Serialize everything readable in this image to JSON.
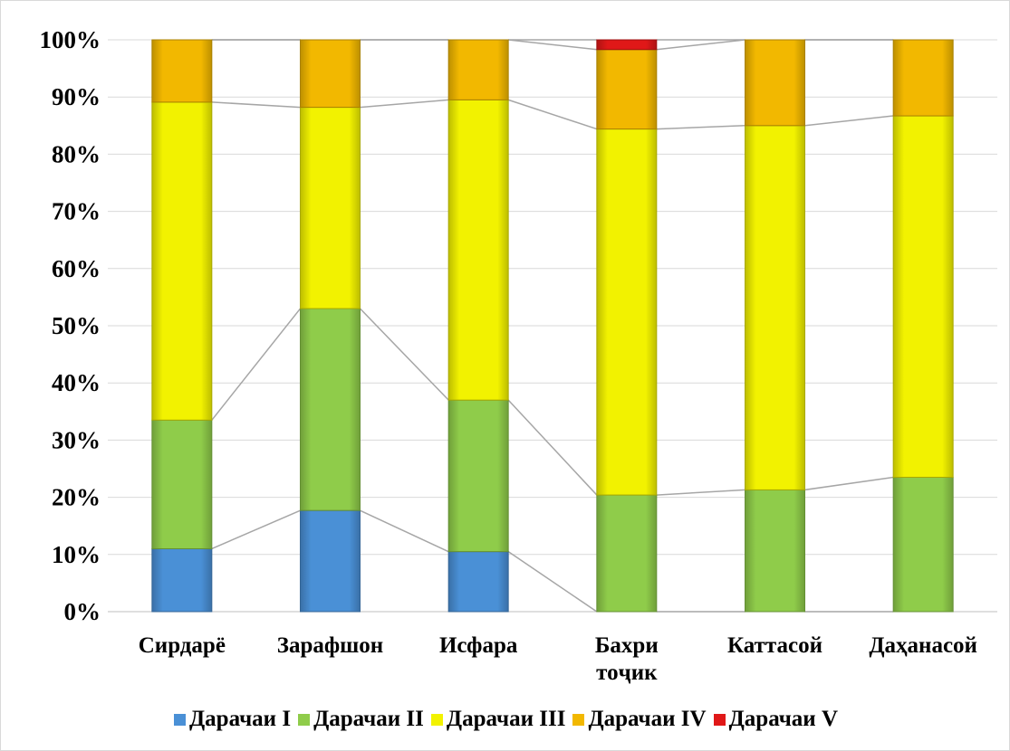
{
  "chart_data": {
    "type": "bar",
    "stacked": true,
    "percent": true,
    "categories": [
      [
        "Сирдарё"
      ],
      [
        "Зарафшон"
      ],
      [
        "Исфара"
      ],
      [
        "Бахри",
        "тоҷик"
      ],
      [
        "Каттасой"
      ],
      [
        "Даҳанасой"
      ]
    ],
    "series": [
      {
        "name": "Дарачаи I",
        "color": "#4a90d6",
        "values": [
          11,
          17.7,
          10.5,
          0,
          0,
          0
        ]
      },
      {
        "name": "Дарачаи II",
        "color": "#8fcc4a",
        "values": [
          22.5,
          35.3,
          26.5,
          20.4,
          21.3,
          23.5
        ]
      },
      {
        "name": "Дарачаи III",
        "color": "#f2f200",
        "values": [
          55.6,
          35.2,
          52.5,
          64,
          63.7,
          63.2
        ]
      },
      {
        "name": "Дарачаи IV",
        "color": "#f2b800",
        "values": [
          10.9,
          11.8,
          10.5,
          13.9,
          15,
          13.3
        ]
      },
      {
        "name": "Дарачаи V",
        "color": "#e01818",
        "values": [
          0,
          0,
          0,
          1.7,
          0,
          0
        ]
      }
    ],
    "yticks": [
      "0%",
      "10%",
      "20%",
      "30%",
      "40%",
      "50%",
      "60%",
      "70%",
      "80%",
      "90%",
      "100%"
    ],
    "ylim": [
      0,
      100
    ],
    "grid": true,
    "series_lines": true,
    "legend_position": "bottom",
    "title": "",
    "xlabel": "",
    "ylabel": ""
  }
}
